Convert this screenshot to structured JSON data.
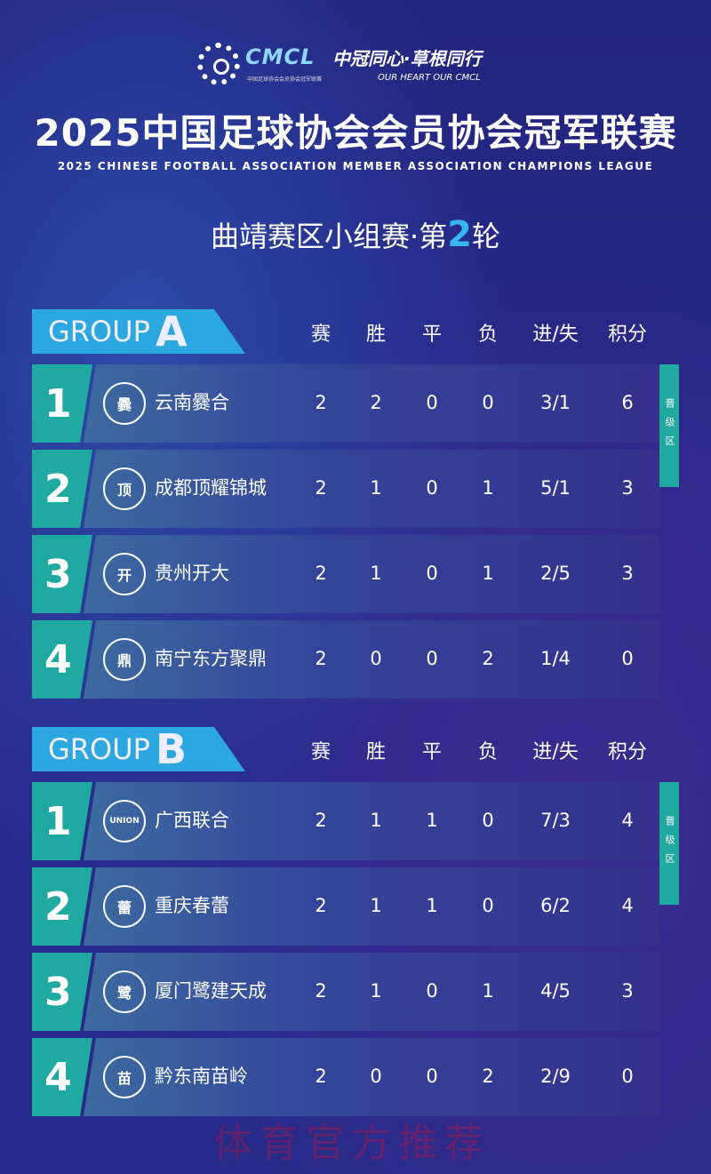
{
  "header": {
    "logo_text": "CMCL",
    "logo_sub": "中国足球协会会员协会冠军联赛",
    "slogan": "中冠同心·草根同行",
    "slogan_en": "OUR HEART OUR CMCL",
    "title": "2025中国足球协会会员协会冠军联赛",
    "title_en": "2025 CHINESE FOOTBALL ASSOCIATION MEMBER ASSOCIATION CHAMPIONS LEAGUE",
    "round_prefix": "曲靖赛区小组赛·第",
    "round_num": "2",
    "round_suffix": "轮"
  },
  "columns": [
    "赛",
    "胜",
    "平",
    "负",
    "进/失",
    "积分"
  ],
  "promotion_label": "晋级区",
  "colors": {
    "accent": "#2da7df",
    "rank_tile": "#1fa9a0",
    "background": "#2a2a8c"
  },
  "groups": [
    {
      "label": "GROUP",
      "letter": "A",
      "rows": [
        {
          "rank": "1",
          "team": "云南爨合",
          "badge": "爨",
          "stats": [
            "2",
            "2",
            "0",
            "0",
            "3/1",
            "6"
          ]
        },
        {
          "rank": "2",
          "team": "成都顶耀锦城",
          "badge": "顶",
          "stats": [
            "2",
            "1",
            "0",
            "1",
            "5/1",
            "3"
          ]
        },
        {
          "rank": "3",
          "team": "贵州开大",
          "badge": "开",
          "stats": [
            "2",
            "1",
            "0",
            "1",
            "2/5",
            "3"
          ]
        },
        {
          "rank": "4",
          "team": "南宁东方聚鼎",
          "badge": "鼎",
          "stats": [
            "2",
            "0",
            "0",
            "2",
            "1/4",
            "0"
          ]
        }
      ]
    },
    {
      "label": "GROUP",
      "letter": "B",
      "rows": [
        {
          "rank": "1",
          "team": "广西联合",
          "badge": "UNION",
          "stats": [
            "2",
            "1",
            "1",
            "0",
            "7/3",
            "4"
          ]
        },
        {
          "rank": "2",
          "team": "重庆春蕾",
          "badge": "蕾",
          "stats": [
            "2",
            "1",
            "1",
            "0",
            "6/2",
            "4"
          ]
        },
        {
          "rank": "3",
          "team": "厦门鹭建天成",
          "badge": "鹭",
          "stats": [
            "2",
            "1",
            "0",
            "1",
            "4/5",
            "3"
          ]
        },
        {
          "rank": "4",
          "team": "黔东南苗岭",
          "badge": "苗",
          "stats": [
            "2",
            "0",
            "0",
            "2",
            "2/9",
            "0"
          ]
        }
      ]
    }
  ],
  "watermark": "体育官方推荐"
}
